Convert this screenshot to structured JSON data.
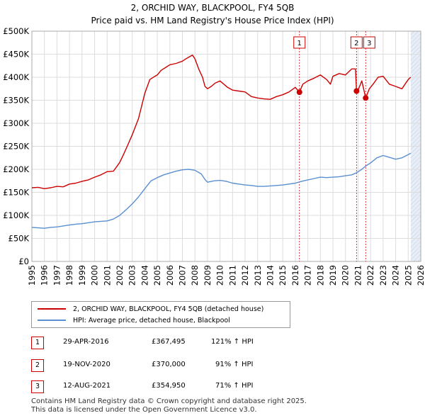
{
  "chart_data": {
    "type": "line",
    "title": "2, ORCHID WAY, BLACKPOOL, FY4 5QB",
    "subtitle": "Price paid vs. HM Land Registry's House Price Index (HPI)",
    "xlim": [
      1995,
      2026
    ],
    "ylim": [
      0,
      500000
    ],
    "y_ticks": [
      0,
      50000,
      100000,
      150000,
      200000,
      250000,
      300000,
      350000,
      400000,
      450000,
      500000
    ],
    "y_tick_labels": [
      "£0",
      "£50K",
      "£100K",
      "£150K",
      "£200K",
      "£250K",
      "£300K",
      "£350K",
      "£400K",
      "£450K",
      "£500K"
    ],
    "x_ticks": [
      1995,
      1996,
      1997,
      1998,
      1999,
      2000,
      2001,
      2002,
      2003,
      2004,
      2005,
      2006,
      2007,
      2008,
      2009,
      2010,
      2011,
      2012,
      2013,
      2014,
      2015,
      2016,
      2017,
      2018,
      2019,
      2020,
      2021,
      2022,
      2023,
      2024,
      2025,
      2026
    ],
    "grid": true,
    "series": [
      {
        "name": "2, ORCHID WAY, BLACKPOOL, FY4 5QB (detached house)",
        "color": "#cc0000",
        "points": [
          [
            1995.0,
            160000
          ],
          [
            1995.5,
            161000
          ],
          [
            1996.0,
            158000
          ],
          [
            1996.5,
            160000
          ],
          [
            1997.0,
            163000
          ],
          [
            1997.5,
            162000
          ],
          [
            1998.0,
            168000
          ],
          [
            1998.5,
            170000
          ],
          [
            1999.0,
            174000
          ],
          [
            1999.5,
            177000
          ],
          [
            2000.0,
            183000
          ],
          [
            2000.5,
            188000
          ],
          [
            2001.0,
            195000
          ],
          [
            2001.5,
            196000
          ],
          [
            2002.0,
            215000
          ],
          [
            2002.3,
            232000
          ],
          [
            2002.6,
            250000
          ],
          [
            2003.0,
            275000
          ],
          [
            2003.5,
            310000
          ],
          [
            2004.0,
            365000
          ],
          [
            2004.4,
            395000
          ],
          [
            2004.8,
            402000
          ],
          [
            2005.0,
            405000
          ],
          [
            2005.3,
            415000
          ],
          [
            2005.6,
            420000
          ],
          [
            2006.0,
            427000
          ],
          [
            2006.5,
            430000
          ],
          [
            2007.0,
            435000
          ],
          [
            2007.4,
            442000
          ],
          [
            2007.8,
            448000
          ],
          [
            2008.0,
            440000
          ],
          [
            2008.3,
            418000
          ],
          [
            2008.6,
            400000
          ],
          [
            2008.8,
            380000
          ],
          [
            2009.0,
            375000
          ],
          [
            2009.3,
            380000
          ],
          [
            2009.6,
            387000
          ],
          [
            2010.0,
            392000
          ],
          [
            2010.3,
            385000
          ],
          [
            2010.6,
            378000
          ],
          [
            2011.0,
            372000
          ],
          [
            2011.5,
            370000
          ],
          [
            2012.0,
            368000
          ],
          [
            2012.5,
            358000
          ],
          [
            2013.0,
            355000
          ],
          [
            2013.5,
            353000
          ],
          [
            2014.0,
            352000
          ],
          [
            2014.5,
            358000
          ],
          [
            2015.0,
            362000
          ],
          [
            2015.5,
            368000
          ],
          [
            2016.0,
            378000
          ],
          [
            2016.33,
            367495
          ],
          [
            2016.6,
            385000
          ],
          [
            2017.0,
            392000
          ],
          [
            2017.5,
            398000
          ],
          [
            2018.0,
            405000
          ],
          [
            2018.5,
            395000
          ],
          [
            2018.8,
            385000
          ],
          [
            2019.0,
            402000
          ],
          [
            2019.5,
            408000
          ],
          [
            2020.0,
            405000
          ],
          [
            2020.5,
            418000
          ],
          [
            2020.8,
            418000
          ],
          [
            2020.88,
            370000
          ],
          [
            2021.0,
            372000
          ],
          [
            2021.3,
            392000
          ],
          [
            2021.61,
            354950
          ],
          [
            2021.9,
            375000
          ],
          [
            2022.2,
            385000
          ],
          [
            2022.6,
            400000
          ],
          [
            2023.0,
            402000
          ],
          [
            2023.5,
            385000
          ],
          [
            2024.0,
            380000
          ],
          [
            2024.5,
            375000
          ],
          [
            2025.0,
            395000
          ],
          [
            2025.2,
            400000
          ]
        ]
      },
      {
        "name": "HPI: Average price, detached house, Blackpool",
        "color": "#5a8fd0",
        "points": [
          [
            1995.0,
            74000
          ],
          [
            1995.5,
            73000
          ],
          [
            1996.0,
            72000
          ],
          [
            1996.5,
            74000
          ],
          [
            1997.0,
            75000
          ],
          [
            1997.5,
            77000
          ],
          [
            1998.0,
            79000
          ],
          [
            1998.5,
            81000
          ],
          [
            1999.0,
            82000
          ],
          [
            1999.5,
            84000
          ],
          [
            2000.0,
            86000
          ],
          [
            2000.5,
            87000
          ],
          [
            2001.0,
            88000
          ],
          [
            2001.5,
            92000
          ],
          [
            2002.0,
            100000
          ],
          [
            2002.5,
            112000
          ],
          [
            2003.0,
            125000
          ],
          [
            2003.5,
            140000
          ],
          [
            2004.0,
            158000
          ],
          [
            2004.5,
            175000
          ],
          [
            2005.0,
            182000
          ],
          [
            2005.5,
            188000
          ],
          [
            2006.0,
            192000
          ],
          [
            2006.5,
            196000
          ],
          [
            2007.0,
            199000
          ],
          [
            2007.5,
            200000
          ],
          [
            2008.0,
            198000
          ],
          [
            2008.5,
            190000
          ],
          [
            2008.8,
            178000
          ],
          [
            2009.0,
            172000
          ],
          [
            2009.5,
            175000
          ],
          [
            2010.0,
            176000
          ],
          [
            2010.5,
            174000
          ],
          [
            2011.0,
            170000
          ],
          [
            2011.5,
            168000
          ],
          [
            2012.0,
            166000
          ],
          [
            2012.5,
            165000
          ],
          [
            2013.0,
            163000
          ],
          [
            2013.5,
            163000
          ],
          [
            2014.0,
            164000
          ],
          [
            2014.5,
            165000
          ],
          [
            2015.0,
            166000
          ],
          [
            2015.5,
            168000
          ],
          [
            2016.0,
            170000
          ],
          [
            2016.5,
            174000
          ],
          [
            2017.0,
            177000
          ],
          [
            2017.5,
            180000
          ],
          [
            2018.0,
            183000
          ],
          [
            2018.5,
            182000
          ],
          [
            2019.0,
            183000
          ],
          [
            2019.5,
            184000
          ],
          [
            2020.0,
            186000
          ],
          [
            2020.5,
            188000
          ],
          [
            2020.9,
            193000
          ],
          [
            2021.3,
            200000
          ],
          [
            2021.6,
            207000
          ],
          [
            2022.0,
            214000
          ],
          [
            2022.5,
            225000
          ],
          [
            2023.0,
            230000
          ],
          [
            2023.5,
            226000
          ],
          [
            2024.0,
            222000
          ],
          [
            2024.5,
            225000
          ],
          [
            2025.0,
            232000
          ],
          [
            2025.2,
            235000
          ]
        ]
      }
    ],
    "transactions": [
      {
        "label": "1",
        "x": 2016.33,
        "value": 367495
      },
      {
        "label": "2",
        "x": 2020.88,
        "value": 370000
      },
      {
        "label": "3",
        "x": 2021.61,
        "value": 354950
      }
    ],
    "shade_after": 2025.2,
    "shade_color": "#e8eef8",
    "marker_color": "#cc0000"
  },
  "legend": [
    {
      "label": "2, ORCHID WAY, BLACKPOOL, FY4 5QB (detached house)",
      "color": "#cc0000"
    },
    {
      "label": "HPI: Average price, detached house, Blackpool",
      "color": "#5a8fd0"
    }
  ],
  "table": [
    {
      "num": "1",
      "date": "29-APR-2016",
      "price": "£367,495",
      "hpi": "121% ↑ HPI"
    },
    {
      "num": "2",
      "date": "19-NOV-2020",
      "price": "£370,000",
      "hpi": "91% ↑ HPI"
    },
    {
      "num": "3",
      "date": "12-AUG-2021",
      "price": "£354,950",
      "hpi": "71% ↑ HPI"
    }
  ],
  "footer": {
    "line1": "Contains HM Land Registry data © Crown copyright and database right 2025.",
    "line2": "This data is licensed under the Open Government Licence v3.0."
  }
}
